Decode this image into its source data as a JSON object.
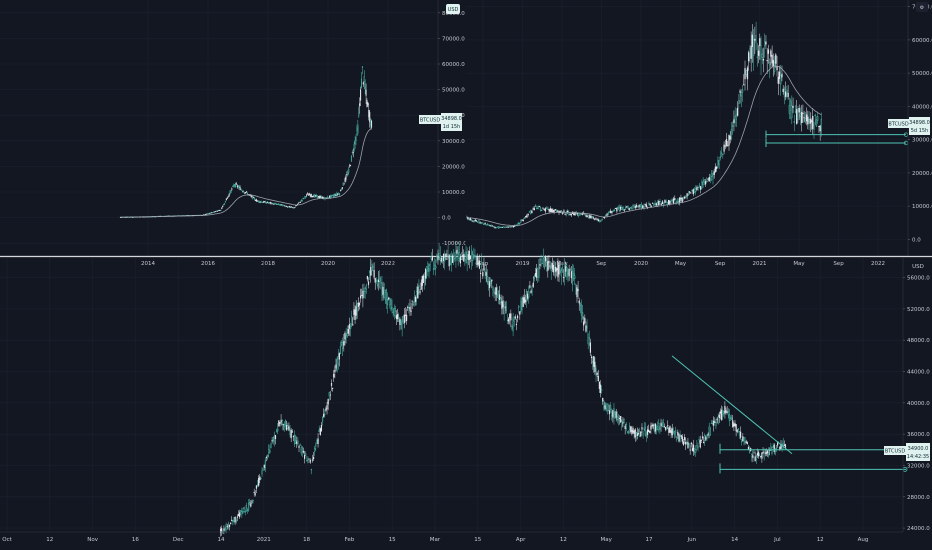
{
  "colors": {
    "background": "#131722",
    "grid": "#1c2130",
    "divider": "#d4d6dc",
    "candle": "#e7eaee",
    "accent": "#4fc3b4",
    "label_bg": "#e0f2f0",
    "label_text": "#0f2a33",
    "ma": "#9aa0ab"
  },
  "panels": {
    "top_left": {
      "axis_unit": "USD",
      "y_ticks": [
        "80000.0",
        "70000.0",
        "60000.0",
        "50000.0",
        "40000.0",
        "30000.0",
        "20000.0",
        "10000.0",
        "0.0",
        "-10000.0"
      ],
      "x_ticks": [
        "2014",
        "2016",
        "2018",
        "2020",
        "2022"
      ],
      "price_label": {
        "symbol": "BTCUSD",
        "price": "34898.0",
        "countdown": "1d 15h"
      }
    },
    "top_right": {
      "axis_unit": "",
      "y_ticks": [
        "70000.0",
        "60000.0",
        "50000.0",
        "40000.0",
        "30000.0",
        "20000.0",
        "10000.0",
        "0.0"
      ],
      "x_ticks": [
        "Sep",
        "2019",
        "May",
        "Sep",
        "2020",
        "May",
        "Sep",
        "2021",
        "May",
        "Sep",
        "2022"
      ],
      "price_label": {
        "symbol": "BTCUSD",
        "price": "34898.0",
        "countdown": "5d 15h"
      }
    },
    "bottom": {
      "axis_unit": "USD",
      "y_ticks": [
        "56000.0",
        "52000.0",
        "48000.0",
        "44000.0",
        "40000.0",
        "36000.0",
        "32000.0",
        "28000.0",
        "24000.0"
      ],
      "x_ticks": [
        "Oct",
        "12",
        "Nov",
        "16",
        "Dec",
        "14",
        "2021",
        "18",
        "Feb",
        "15",
        "Mar",
        "15",
        "Apr",
        "12",
        "May",
        "17",
        "Jun",
        "14",
        "Jul",
        "12",
        "Aug"
      ],
      "price_label": {
        "symbol": "BTCUSD",
        "price": "34900.0",
        "countdown": "14:42:35"
      }
    }
  },
  "chart_data": [
    {
      "type": "candlestick",
      "title": "BTCUSD",
      "interval": "weekly",
      "ylim": [
        -15000,
        85000
      ],
      "y_unit": "USD",
      "last_price": 34898.0,
      "moving_average": true,
      "grid": true,
      "legend": "none"
    },
    {
      "type": "candlestick",
      "title": "BTCUSD",
      "interval": "weekly",
      "ylim": [
        -5000,
        72000
      ],
      "last_price": 34898.0,
      "moving_average": true,
      "horizontal_levels": [
        31500,
        29000
      ],
      "grid": true,
      "legend": "none"
    },
    {
      "type": "candlestick",
      "title": "BTCUSD",
      "interval": "daily",
      "ylim": [
        23500,
        58500
      ],
      "y_unit": "USD",
      "last_price": 34900.0,
      "horizontal_levels": [
        34000,
        31500
      ],
      "trendline": {
        "from": [
          "May",
          46000
        ],
        "to": [
          "Jul",
          33500
        ]
      },
      "grid": true,
      "legend": "none"
    }
  ]
}
